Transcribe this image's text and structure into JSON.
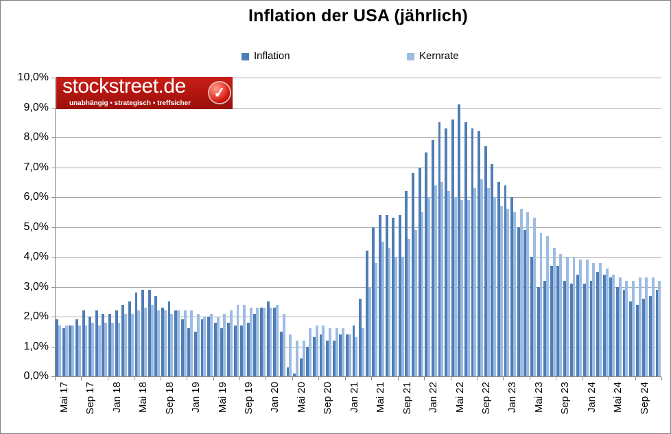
{
  "header": {
    "title": "Inflation der USA (jährlich)"
  },
  "legend": {
    "items": [
      {
        "label": "Inflation"
      },
      {
        "label": "Kernrate"
      }
    ]
  },
  "logo": {
    "brand": "stockstreet.de",
    "tagline": "unabhängig • strategisch • treffsicher",
    "check_glyph": "✓",
    "background_color": "#b01510"
  },
  "colors": {
    "inflation_bar": "#4F7DB5",
    "kernrate_bar": "#9DBCE4",
    "gridline": "#a6a6a6",
    "axis": "#8c8c8c",
    "frame_border": "#808080"
  },
  "chart_data": {
    "type": "bar",
    "title": "Inflation der USA (jährlich)",
    "xlabel": "",
    "ylabel": "",
    "ylim": [
      0,
      10
    ],
    "grid": "horizontal gridlines every 1%",
    "legend_position": "top",
    "y_tick_labels": [
      "0,0%",
      "1,0%",
      "2,0%",
      "3,0%",
      "4,0%",
      "5,0%",
      "6,0%",
      "7,0%",
      "8,0%",
      "9,0%",
      "10,0%"
    ],
    "x_tick_interval": 4,
    "x_tick_labels": [
      "Mai 17",
      "Sep 17",
      "Jan 18",
      "Mai 18",
      "Sep 18",
      "Jan 19",
      "Mai 19",
      "Sep 19",
      "Jan 20",
      "Mai 20",
      "Sep 20",
      "Jan 21",
      "Mai 21",
      "Sep 21",
      "Jan 22",
      "Mai 22",
      "Sep 22",
      "Jan 23",
      "Mai 23",
      "Sep 23",
      "Jan 24",
      "Mai 24",
      "Sep 24"
    ],
    "categories": [
      "Mai 17",
      "Jun 17",
      "Jul 17",
      "Aug 17",
      "Sep 17",
      "Okt 17",
      "Nov 17",
      "Dez 17",
      "Jan 18",
      "Feb 18",
      "Mär 18",
      "Apr 18",
      "Mai 18",
      "Jun 18",
      "Jul 18",
      "Aug 18",
      "Sep 18",
      "Okt 18",
      "Nov 18",
      "Dez 18",
      "Jan 19",
      "Feb 19",
      "Mär 19",
      "Apr 19",
      "Mai 19",
      "Jun 19",
      "Jul 19",
      "Aug 19",
      "Sep 19",
      "Okt 19",
      "Nov 19",
      "Dez 19",
      "Jan 20",
      "Feb 20",
      "Mär 20",
      "Apr 20",
      "Mai 20",
      "Jun 20",
      "Jul 20",
      "Aug 20",
      "Sep 20",
      "Okt 20",
      "Nov 20",
      "Dez 20",
      "Jan 21",
      "Feb 21",
      "Mär 21",
      "Apr 21",
      "Mai 21",
      "Jun 21",
      "Jul 21",
      "Aug 21",
      "Sep 21",
      "Okt 21",
      "Nov 21",
      "Dez 21",
      "Jan 22",
      "Feb 22",
      "Mär 22",
      "Apr 22",
      "Mai 22",
      "Jun 22",
      "Jul 22",
      "Aug 22",
      "Sep 22",
      "Okt 22",
      "Nov 22",
      "Dez 22",
      "Jan 23",
      "Feb 23",
      "Mär 23",
      "Apr 23",
      "Mai 23",
      "Jun 23",
      "Jul 23",
      "Aug 23",
      "Sep 23",
      "Okt 23",
      "Nov 23",
      "Dez 23",
      "Jan 24",
      "Feb 24",
      "Mär 24",
      "Apr 24",
      "Mai 24",
      "Jun 24",
      "Jul 24",
      "Aug 24",
      "Sep 24",
      "Okt 24",
      "Nov 24",
      "Dez 24"
    ],
    "series": [
      {
        "name": "Inflation",
        "color": "#4F7DB5",
        "values": [
          1.9,
          1.6,
          1.7,
          1.9,
          2.2,
          2.0,
          2.2,
          2.1,
          2.1,
          2.2,
          2.4,
          2.5,
          2.8,
          2.9,
          2.9,
          2.7,
          2.3,
          2.5,
          2.2,
          1.9,
          1.6,
          1.5,
          1.9,
          2.0,
          1.8,
          1.6,
          1.8,
          1.7,
          1.7,
          1.8,
          2.1,
          2.3,
          2.5,
          2.3,
          1.5,
          0.3,
          0.1,
          0.6,
          1.0,
          1.3,
          1.4,
          1.2,
          1.2,
          1.4,
          1.4,
          1.7,
          2.6,
          4.2,
          5.0,
          5.4,
          5.4,
          5.3,
          5.4,
          6.2,
          6.8,
          7.0,
          7.5,
          7.9,
          8.5,
          8.3,
          8.6,
          9.1,
          8.5,
          8.3,
          8.2,
          7.7,
          7.1,
          6.5,
          6.4,
          6.0,
          5.0,
          4.9,
          4.0,
          3.0,
          3.2,
          3.7,
          3.7,
          3.2,
          3.1,
          3.4,
          3.1,
          3.2,
          3.5,
          3.4,
          3.3,
          3.0,
          2.9,
          2.5,
          2.4,
          2.6,
          2.7,
          2.9
        ]
      },
      {
        "name": "Kernrate",
        "color": "#9DBCE4",
        "values": [
          1.7,
          1.7,
          1.7,
          1.7,
          1.7,
          1.8,
          1.7,
          1.8,
          1.8,
          1.8,
          2.1,
          2.1,
          2.2,
          2.3,
          2.4,
          2.2,
          2.2,
          2.1,
          2.2,
          2.2,
          2.2,
          2.1,
          2.0,
          2.1,
          2.0,
          2.1,
          2.2,
          2.4,
          2.4,
          2.3,
          2.3,
          2.3,
          2.3,
          2.4,
          2.1,
          1.4,
          1.2,
          1.2,
          1.6,
          1.7,
          1.7,
          1.6,
          1.6,
          1.6,
          1.4,
          1.3,
          1.6,
          3.0,
          3.8,
          4.5,
          4.3,
          4.0,
          4.0,
          4.6,
          4.9,
          5.5,
          6.0,
          6.4,
          6.5,
          6.2,
          6.0,
          5.9,
          5.9,
          6.3,
          6.6,
          6.3,
          6.0,
          5.7,
          5.6,
          5.5,
          5.6,
          5.5,
          5.3,
          4.8,
          4.7,
          4.3,
          4.1,
          4.0,
          4.0,
          3.9,
          3.9,
          3.8,
          3.8,
          3.6,
          3.4,
          3.3,
          3.2,
          3.2,
          3.3,
          3.3,
          3.3,
          3.2
        ]
      }
    ]
  }
}
